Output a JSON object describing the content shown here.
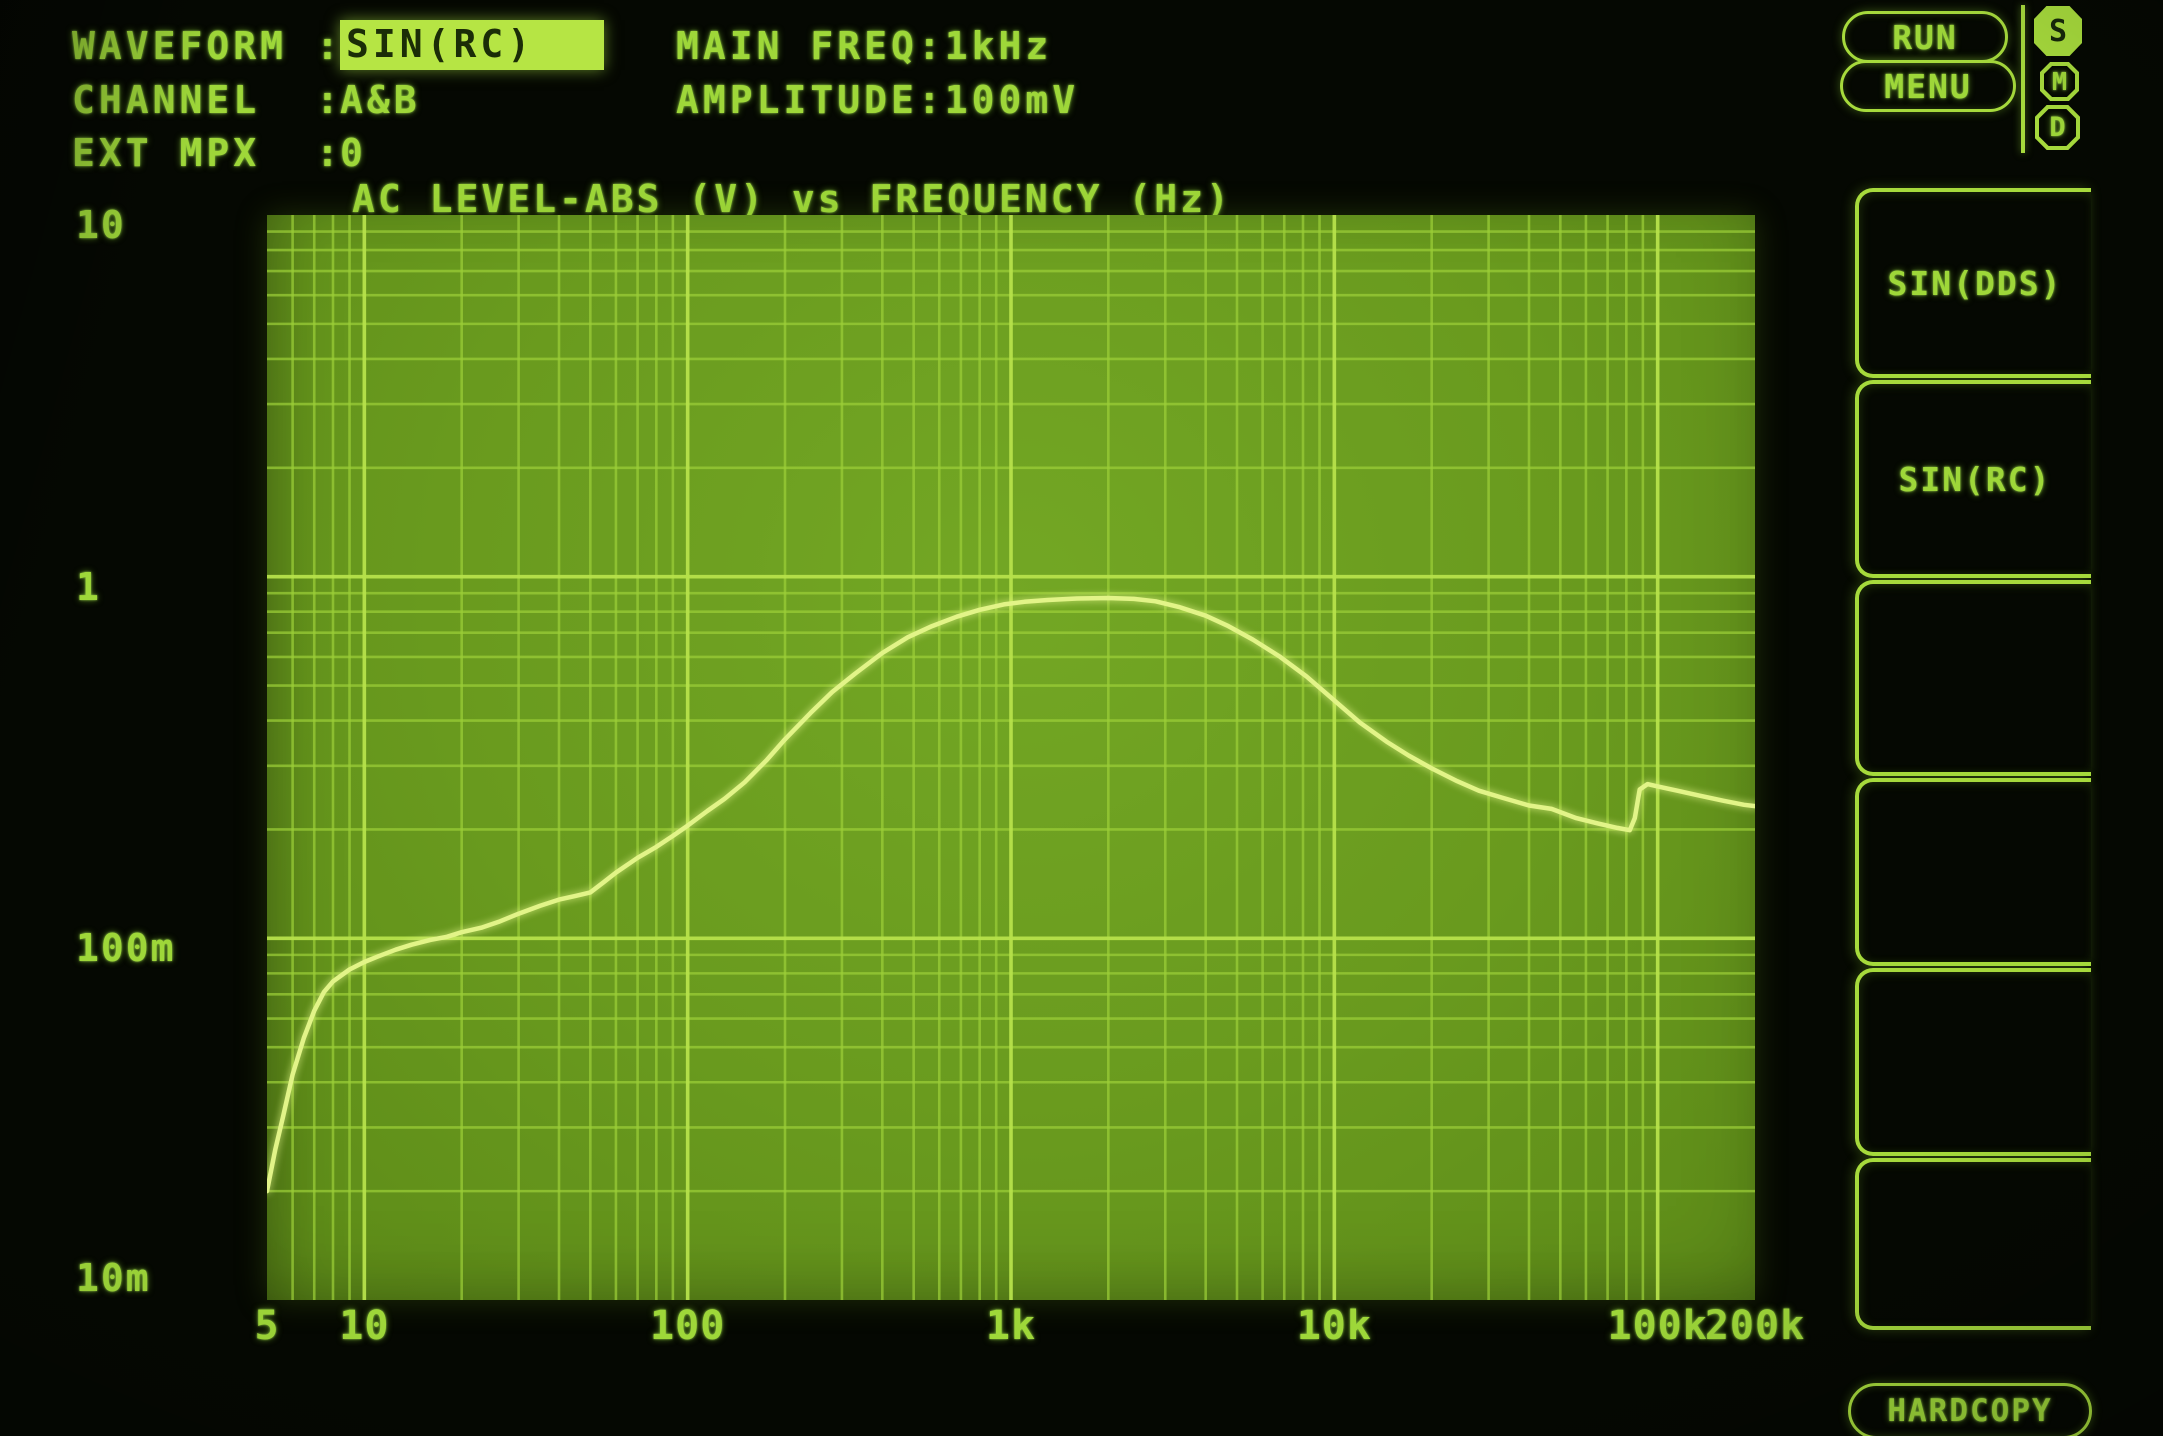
{
  "header": {
    "separator": ":",
    "left_rows": [
      {
        "key": "waveform",
        "label": "WAVEFORM",
        "value": "SIN(RC)",
        "highlight": true
      },
      {
        "key": "channel",
        "label": "CHANNEL",
        "value": "A&B",
        "highlight": false
      },
      {
        "key": "ext-mpx",
        "label": "EXT MPX",
        "value": "0",
        "highlight": false
      }
    ],
    "right_rows": [
      {
        "key": "main-freq",
        "label": "MAIN FREQ",
        "value": "1kHz"
      },
      {
        "key": "amplitude",
        "label": "AMPLITUDE",
        "value": "100mV"
      }
    ]
  },
  "buttons": {
    "run": "RUN",
    "menu": "MENU",
    "hardcopy": "HARDCOPY"
  },
  "status_badges": [
    {
      "key": "s",
      "label": "S",
      "active": true
    },
    {
      "key": "m",
      "label": "M",
      "active": false
    },
    {
      "key": "d",
      "label": "D",
      "active": false
    }
  ],
  "softkeys": [
    {
      "key": "sin-dds",
      "label": "SIN(DDS)"
    },
    {
      "key": "sin-rc",
      "label": "SIN(RC)"
    },
    {
      "key": "blank-3",
      "label": ""
    },
    {
      "key": "blank-4",
      "label": ""
    },
    {
      "key": "blank-5",
      "label": ""
    },
    {
      "key": "blank-6",
      "label": ""
    }
  ],
  "colors": {
    "text_green": "#9ed739",
    "accent": "#a6da3c",
    "highlight_bg": "#b6e544",
    "highlight_text": "#1b2d07",
    "plot_bg": "#699a1e",
    "grid_minor": "#9ccf38",
    "grid_major": "#b7e24b",
    "trace": "#e2f488",
    "background": "#050802"
  },
  "chart_data": {
    "type": "line",
    "title": "AC LEVEL-ABS (V) vs FREQUENCY (Hz)",
    "xlabel": "FREQUENCY (Hz)",
    "ylabel": "AC LEVEL-ABS (V)",
    "x_scale": "log",
    "y_scale": "log",
    "xlim": [
      5,
      200000
    ],
    "ylim": [
      0.01,
      10
    ],
    "grid": "log-log, minor and major gridlines on",
    "legend": "none",
    "x_ticks": [
      {
        "v": 5,
        "label": "5"
      },
      {
        "v": 10,
        "label": "10"
      },
      {
        "v": 100,
        "label": "100"
      },
      {
        "v": 1000,
        "label": "1k"
      },
      {
        "v": 10000,
        "label": "10k"
      },
      {
        "v": 100000,
        "label": "100k"
      },
      {
        "v": 200000,
        "label": "200k"
      }
    ],
    "y_ticks": [
      {
        "v": 10,
        "label": "10"
      },
      {
        "v": 1,
        "label": "1"
      },
      {
        "v": 0.1,
        "label": "100m"
      },
      {
        "v": 0.01,
        "label": "10m"
      }
    ],
    "series": [
      {
        "name": "AC LEVEL-ABS",
        "points": [
          [
            5,
            0.02
          ],
          [
            5.3,
            0.026
          ],
          [
            5.6,
            0.032
          ],
          [
            6,
            0.042
          ],
          [
            6.5,
            0.053
          ],
          [
            7,
            0.063
          ],
          [
            7.5,
            0.071
          ],
          [
            8,
            0.076
          ],
          [
            9,
            0.082
          ],
          [
            10,
            0.086
          ],
          [
            11,
            0.089
          ],
          [
            12.5,
            0.093
          ],
          [
            14,
            0.096
          ],
          [
            16,
            0.099
          ],
          [
            18,
            0.101
          ],
          [
            20,
            0.104
          ],
          [
            23,
            0.107
          ],
          [
            26,
            0.111
          ],
          [
            30,
            0.117
          ],
          [
            35,
            0.123
          ],
          [
            40,
            0.128
          ],
          [
            45,
            0.131
          ],
          [
            50,
            0.134
          ],
          [
            55,
            0.143
          ],
          [
            60,
            0.152
          ],
          [
            70,
            0.167
          ],
          [
            80,
            0.179
          ],
          [
            90,
            0.192
          ],
          [
            100,
            0.205
          ],
          [
            115,
            0.225
          ],
          [
            130,
            0.243
          ],
          [
            150,
            0.27
          ],
          [
            175,
            0.31
          ],
          [
            200,
            0.355
          ],
          [
            240,
            0.42
          ],
          [
            280,
            0.48
          ],
          [
            330,
            0.54
          ],
          [
            400,
            0.615
          ],
          [
            480,
            0.68
          ],
          [
            570,
            0.73
          ],
          [
            680,
            0.775
          ],
          [
            800,
            0.81
          ],
          [
            950,
            0.838
          ],
          [
            1100,
            0.852
          ],
          [
            1300,
            0.862
          ],
          [
            1600,
            0.87
          ],
          [
            2000,
            0.873
          ],
          [
            2400,
            0.868
          ],
          [
            2800,
            0.855
          ],
          [
            3300,
            0.825
          ],
          [
            4000,
            0.78
          ],
          [
            4700,
            0.73
          ],
          [
            5600,
            0.67
          ],
          [
            6800,
            0.6
          ],
          [
            8200,
            0.53
          ],
          [
            10000,
            0.455
          ],
          [
            12000,
            0.395
          ],
          [
            14500,
            0.35
          ],
          [
            17000,
            0.32
          ],
          [
            20000,
            0.295
          ],
          [
            24000,
            0.272
          ],
          [
            28000,
            0.256
          ],
          [
            33000,
            0.245
          ],
          [
            40000,
            0.233
          ],
          [
            47000,
            0.228
          ],
          [
            56000,
            0.215
          ],
          [
            65000,
            0.208
          ],
          [
            75000,
            0.202
          ],
          [
            82000,
            0.199
          ],
          [
            85000,
            0.215
          ],
          [
            88000,
            0.258
          ],
          [
            93000,
            0.267
          ],
          [
            100000,
            0.263
          ],
          [
            115000,
            0.256
          ],
          [
            135000,
            0.248
          ],
          [
            160000,
            0.24
          ],
          [
            185000,
            0.234
          ],
          [
            200000,
            0.232
          ]
        ]
      }
    ]
  }
}
